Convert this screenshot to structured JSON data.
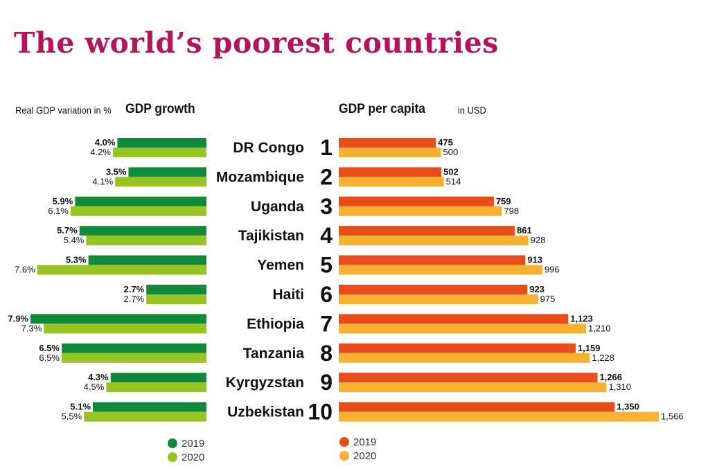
{
  "chart_data": [
    {
      "type": "bar",
      "title": "GDP growth",
      "subtitle": "Real GDP variation in %",
      "categories": [
        "DR Congo",
        "Mozambique",
        "Uganda",
        "Tajikistan",
        "Yemen",
        "Haiti",
        "Ethiopia",
        "Tanzania",
        "Kyrgyzstan",
        "Uzbekistan"
      ],
      "series": [
        {
          "name": "2019",
          "color": "#138a3b",
          "values": [
            4.0,
            3.5,
            5.9,
            5.7,
            5.3,
            2.7,
            7.9,
            6.5,
            4.3,
            5.1
          ],
          "labels": [
            "4.0%",
            "3.5%",
            "5.9%",
            "5.7%",
            "5.3%",
            "2.7%",
            "7.9%",
            "6.5%",
            "4.3%",
            "5.1%"
          ]
        },
        {
          "name": "2020",
          "color": "#97c423",
          "values": [
            4.2,
            4.1,
            6.1,
            5.4,
            7.6,
            2.7,
            7.3,
            6.5,
            4.5,
            5.5
          ],
          "labels": [
            "4.2%",
            "4.1%",
            "6.1%",
            "5.4%",
            "7.6%",
            "2.7%",
            "7.3%",
            "6.5%",
            "4.5%",
            "5.5%"
          ]
        }
      ],
      "orientation": "horizontal",
      "direction": "right-to-left",
      "legend": "bottom"
    },
    {
      "type": "bar",
      "title": "GDP per capita",
      "subtitle": "in USD",
      "categories": [
        "DR Congo",
        "Mozambique",
        "Uganda",
        "Tajikistan",
        "Yemen",
        "Haiti",
        "Ethiopia",
        "Tanzania",
        "Kyrgyzstan",
        "Uzbekistan"
      ],
      "ranks": [
        "1",
        "2",
        "3",
        "4",
        "5",
        "6",
        "7",
        "8",
        "9",
        "10"
      ],
      "series": [
        {
          "name": "2019",
          "color": "#e84e1b",
          "values": [
            475,
            502,
            759,
            861,
            913,
            923,
            1123,
            1159,
            1266,
            1350
          ],
          "labels": [
            "475",
            "502",
            "759",
            "861",
            "913",
            "923",
            "1,123",
            "1,159",
            "1,266",
            "1,350"
          ]
        },
        {
          "name": "2020",
          "color": "#f8b133",
          "values": [
            500,
            514,
            798,
            928,
            996,
            975,
            1210,
            1228,
            1310,
            1566
          ],
          "labels": [
            "500",
            "514",
            "798",
            "928",
            "996",
            "975",
            "1,210",
            "1,228",
            "1,310",
            "1,566"
          ]
        }
      ],
      "orientation": "horizontal",
      "direction": "left-to-right",
      "legend": "bottom"
    }
  ],
  "header": {
    "title": "The world’s poorest countries",
    "left_subtitle": "Real GDP variation in %",
    "left_title": "GDP growth",
    "right_title": "GDP per capita",
    "right_subtitle": "in USD"
  }
}
